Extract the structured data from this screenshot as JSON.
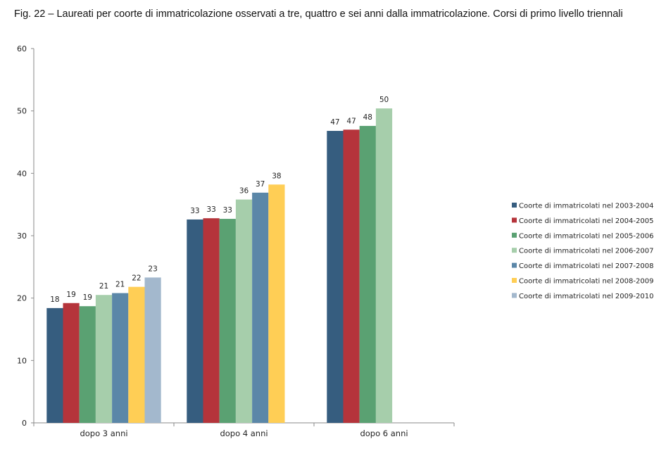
{
  "title": "Fig. 22 – Laureati per coorte di immatricolazione osservati a tre, quattro e sei anni dalla immatricolazione. Corsi di primo livello triennali",
  "chart_data": {
    "type": "bar",
    "categories": [
      "dopo 3 anni",
      "dopo 4 anni",
      "dopo 6 anni"
    ],
    "ylim": [
      0,
      60
    ],
    "yticks": [
      0,
      10,
      20,
      30,
      40,
      50,
      60
    ],
    "grid": false,
    "legend_position": "right",
    "series": [
      {
        "name": "Coorte di immatricolati nel 2003-2004",
        "color": "#365d7f",
        "values": [
          18.4,
          32.6,
          46.8
        ],
        "labels": [
          "18",
          "33",
          "47"
        ]
      },
      {
        "name": "Coorte di immatricolati nel 2004-2005",
        "color": "#b5343b",
        "values": [
          19.2,
          32.8,
          47.0
        ],
        "labels": [
          "19",
          "33",
          "47"
        ]
      },
      {
        "name": "Coorte di immatricolati nel 2005-2006",
        "color": "#5aa172",
        "values": [
          18.7,
          32.7,
          47.6
        ],
        "labels": [
          "19",
          "33",
          "48"
        ]
      },
      {
        "name": "Coorte di immatricolati nel 2006-2007",
        "color": "#a6ceab",
        "values": [
          20.5,
          35.8,
          50.4
        ],
        "labels": [
          "21",
          "36",
          "50"
        ]
      },
      {
        "name": "Coorte di immatricolati nel 2007-2008",
        "color": "#5b87a8",
        "values": [
          20.8,
          36.9,
          null
        ],
        "labels": [
          "21",
          "37",
          ""
        ]
      },
      {
        "name": "Coorte di immatricolati nel 2008-2009",
        "color": "#ffce55",
        "values": [
          21.8,
          38.2,
          null
        ],
        "labels": [
          "22",
          "38",
          ""
        ]
      },
      {
        "name": "Coorte di immatricolati nel 2009-2010",
        "color": "#a3b8cd",
        "values": [
          23.3,
          null,
          null
        ],
        "labels": [
          "23",
          "",
          ""
        ]
      }
    ]
  }
}
